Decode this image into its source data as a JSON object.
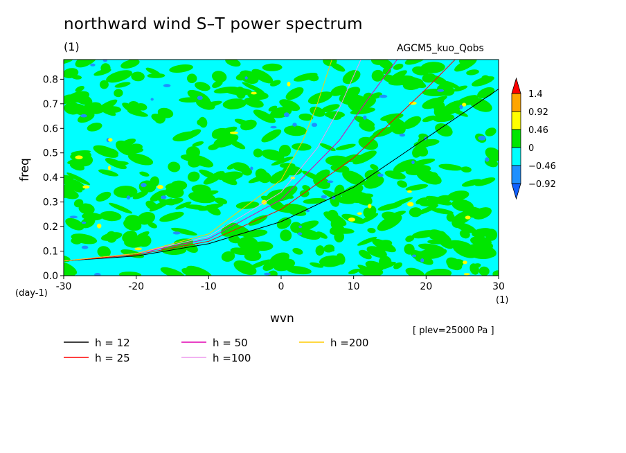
{
  "title": "northward wind S–T power spectrum",
  "units_label": "(1)",
  "model_label": "AGCM5_kuo_Qobs",
  "level_label": "[ plev=25000 Pa ]",
  "chart_data": {
    "type": "heatmap",
    "xlabel": "wvn",
    "ylabel": "freq",
    "x_unit": "(1)",
    "y_unit": "(day-1)",
    "xlim": [
      -30,
      30
    ],
    "ylim": [
      0,
      0.88
    ],
    "x_ticks": [
      "-30",
      "-20",
      "-10",
      "0",
      "10",
      "20",
      "30"
    ],
    "x_tick_values": [
      -30,
      -20,
      -10,
      0,
      10,
      20,
      30
    ],
    "y_ticks": [
      "0.0",
      "0.1",
      "0.2",
      "0.3",
      "0.4",
      "0.5",
      "0.6",
      "0.7",
      "0.8"
    ],
    "y_tick_values": [
      0,
      0.1,
      0.2,
      0.3,
      0.4,
      0.5,
      0.6,
      0.7,
      0.8
    ],
    "colorbar": {
      "labels": [
        "1.4",
        "0.92",
        "0.46",
        "0",
        "−0.46",
        "−0.92"
      ],
      "bins_top_to_bottom": [
        "#ff0000",
        "#ffa500",
        "#ffff00",
        "#00e600",
        "#00ffff",
        "#1e90ff",
        "#1060ff"
      ]
    },
    "field_description": "mixed green and cyan contours, scattered yellow/blue spots",
    "dispersion_curves": [
      {
        "name": "h = 12",
        "color": "#000000",
        "points": [
          [
            -30,
            0.06
          ],
          [
            -20,
            0.08
          ],
          [
            -10,
            0.13
          ],
          [
            0,
            0.22
          ],
          [
            10,
            0.36
          ],
          [
            20,
            0.56
          ],
          [
            30,
            0.76
          ]
        ]
      },
      {
        "name": "h = 25",
        "color": "#ff0000",
        "points": [
          [
            -30,
            0.06
          ],
          [
            -20,
            0.085
          ],
          [
            -10,
            0.14
          ],
          [
            0,
            0.27
          ],
          [
            10,
            0.48
          ],
          [
            20,
            0.76
          ],
          [
            24,
            0.88
          ]
        ]
      },
      {
        "name": "h = 50",
        "color": "#e000b0",
        "points": [
          [
            -30,
            0.06
          ],
          [
            -20,
            0.09
          ],
          [
            -10,
            0.15
          ],
          [
            0,
            0.31
          ],
          [
            8,
            0.55
          ],
          [
            12,
            0.72
          ],
          [
            16,
            0.88
          ]
        ]
      },
      {
        "name": "h =100",
        "color": "#ee99ee",
        "points": [
          [
            -30,
            0.06
          ],
          [
            -20,
            0.09
          ],
          [
            -10,
            0.16
          ],
          [
            0,
            0.34
          ],
          [
            5,
            0.52
          ],
          [
            8,
            0.68
          ],
          [
            11,
            0.88
          ]
        ]
      },
      {
        "name": "h =200",
        "color": "#ffcc00",
        "points": [
          [
            -30,
            0.06
          ],
          [
            -20,
            0.09
          ],
          [
            -10,
            0.17
          ],
          [
            0,
            0.39
          ],
          [
            3,
            0.55
          ],
          [
            5,
            0.7
          ],
          [
            7,
            0.88
          ]
        ]
      }
    ]
  }
}
